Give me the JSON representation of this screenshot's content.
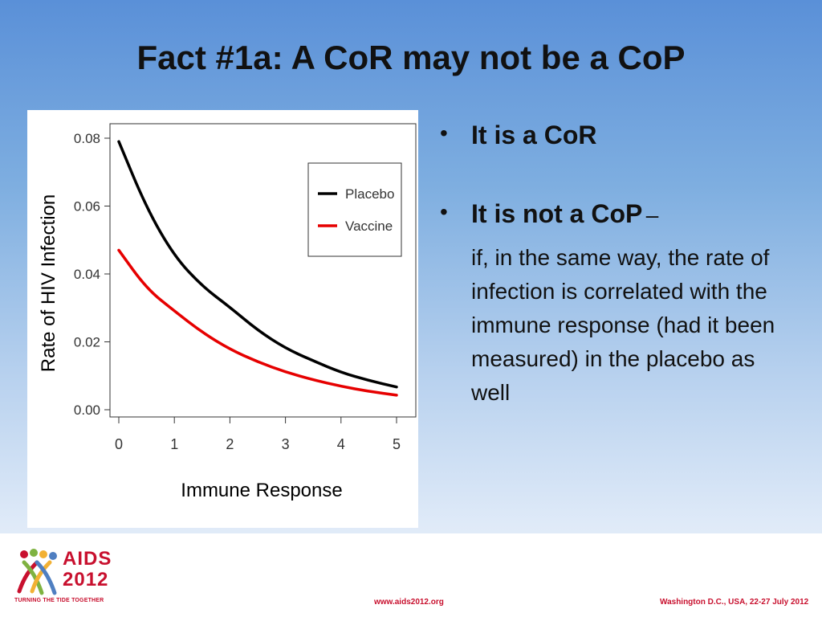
{
  "slide": {
    "title": "Fact #1a: A CoR may not be a CoP"
  },
  "bullets": [
    {
      "text": "It is a CoR"
    },
    {
      "text": "It is not a CoP",
      "suffix": "–",
      "sub": "if, in the same way, the rate of infection is correlated with the immune response (had it been measured) in the placebo as well"
    }
  ],
  "footer": {
    "url": "www.aids2012.org",
    "date": "Washington D.C., USA, 22-27 July 2012",
    "logo_line1": "AIDS",
    "logo_line2": "2012",
    "logo_tagline": "TURNING THE TIDE TOGETHER"
  },
  "colors": {
    "placebo": "#000000",
    "vaccine": "#e60000",
    "accent": "#c8102e"
  },
  "chart_data": {
    "type": "line",
    "title": "",
    "xlabel": "Immune Response",
    "ylabel": "Rate of HIV Infection",
    "xlim": [
      0,
      5
    ],
    "ylim": [
      0,
      0.08
    ],
    "x_ticks": [
      "0",
      "1",
      "2",
      "3",
      "4",
      "5"
    ],
    "y_ticks": [
      "0.00",
      "0.02",
      "0.04",
      "0.06",
      "0.08"
    ],
    "legend_position": "top-right",
    "grid": false,
    "series": [
      {
        "name": "Placebo",
        "color": "#000000",
        "x": [
          0,
          0.5,
          1,
          1.5,
          2,
          2.5,
          3,
          3.5,
          4,
          4.5,
          5
        ],
        "y": [
          0.079,
          0.0594,
          0.0452,
          0.0364,
          0.0302,
          0.0234,
          0.0181,
          0.0144,
          0.011,
          0.0086,
          0.0067
        ]
      },
      {
        "name": "Vaccine",
        "color": "#e60000",
        "x": [
          0,
          0.5,
          1,
          1.5,
          2,
          2.5,
          3,
          3.5,
          4,
          4.5,
          5
        ],
        "y": [
          0.047,
          0.0357,
          0.0291,
          0.0228,
          0.0178,
          0.0141,
          0.0111,
          0.0088,
          0.0069,
          0.0054,
          0.0043
        ]
      }
    ]
  }
}
